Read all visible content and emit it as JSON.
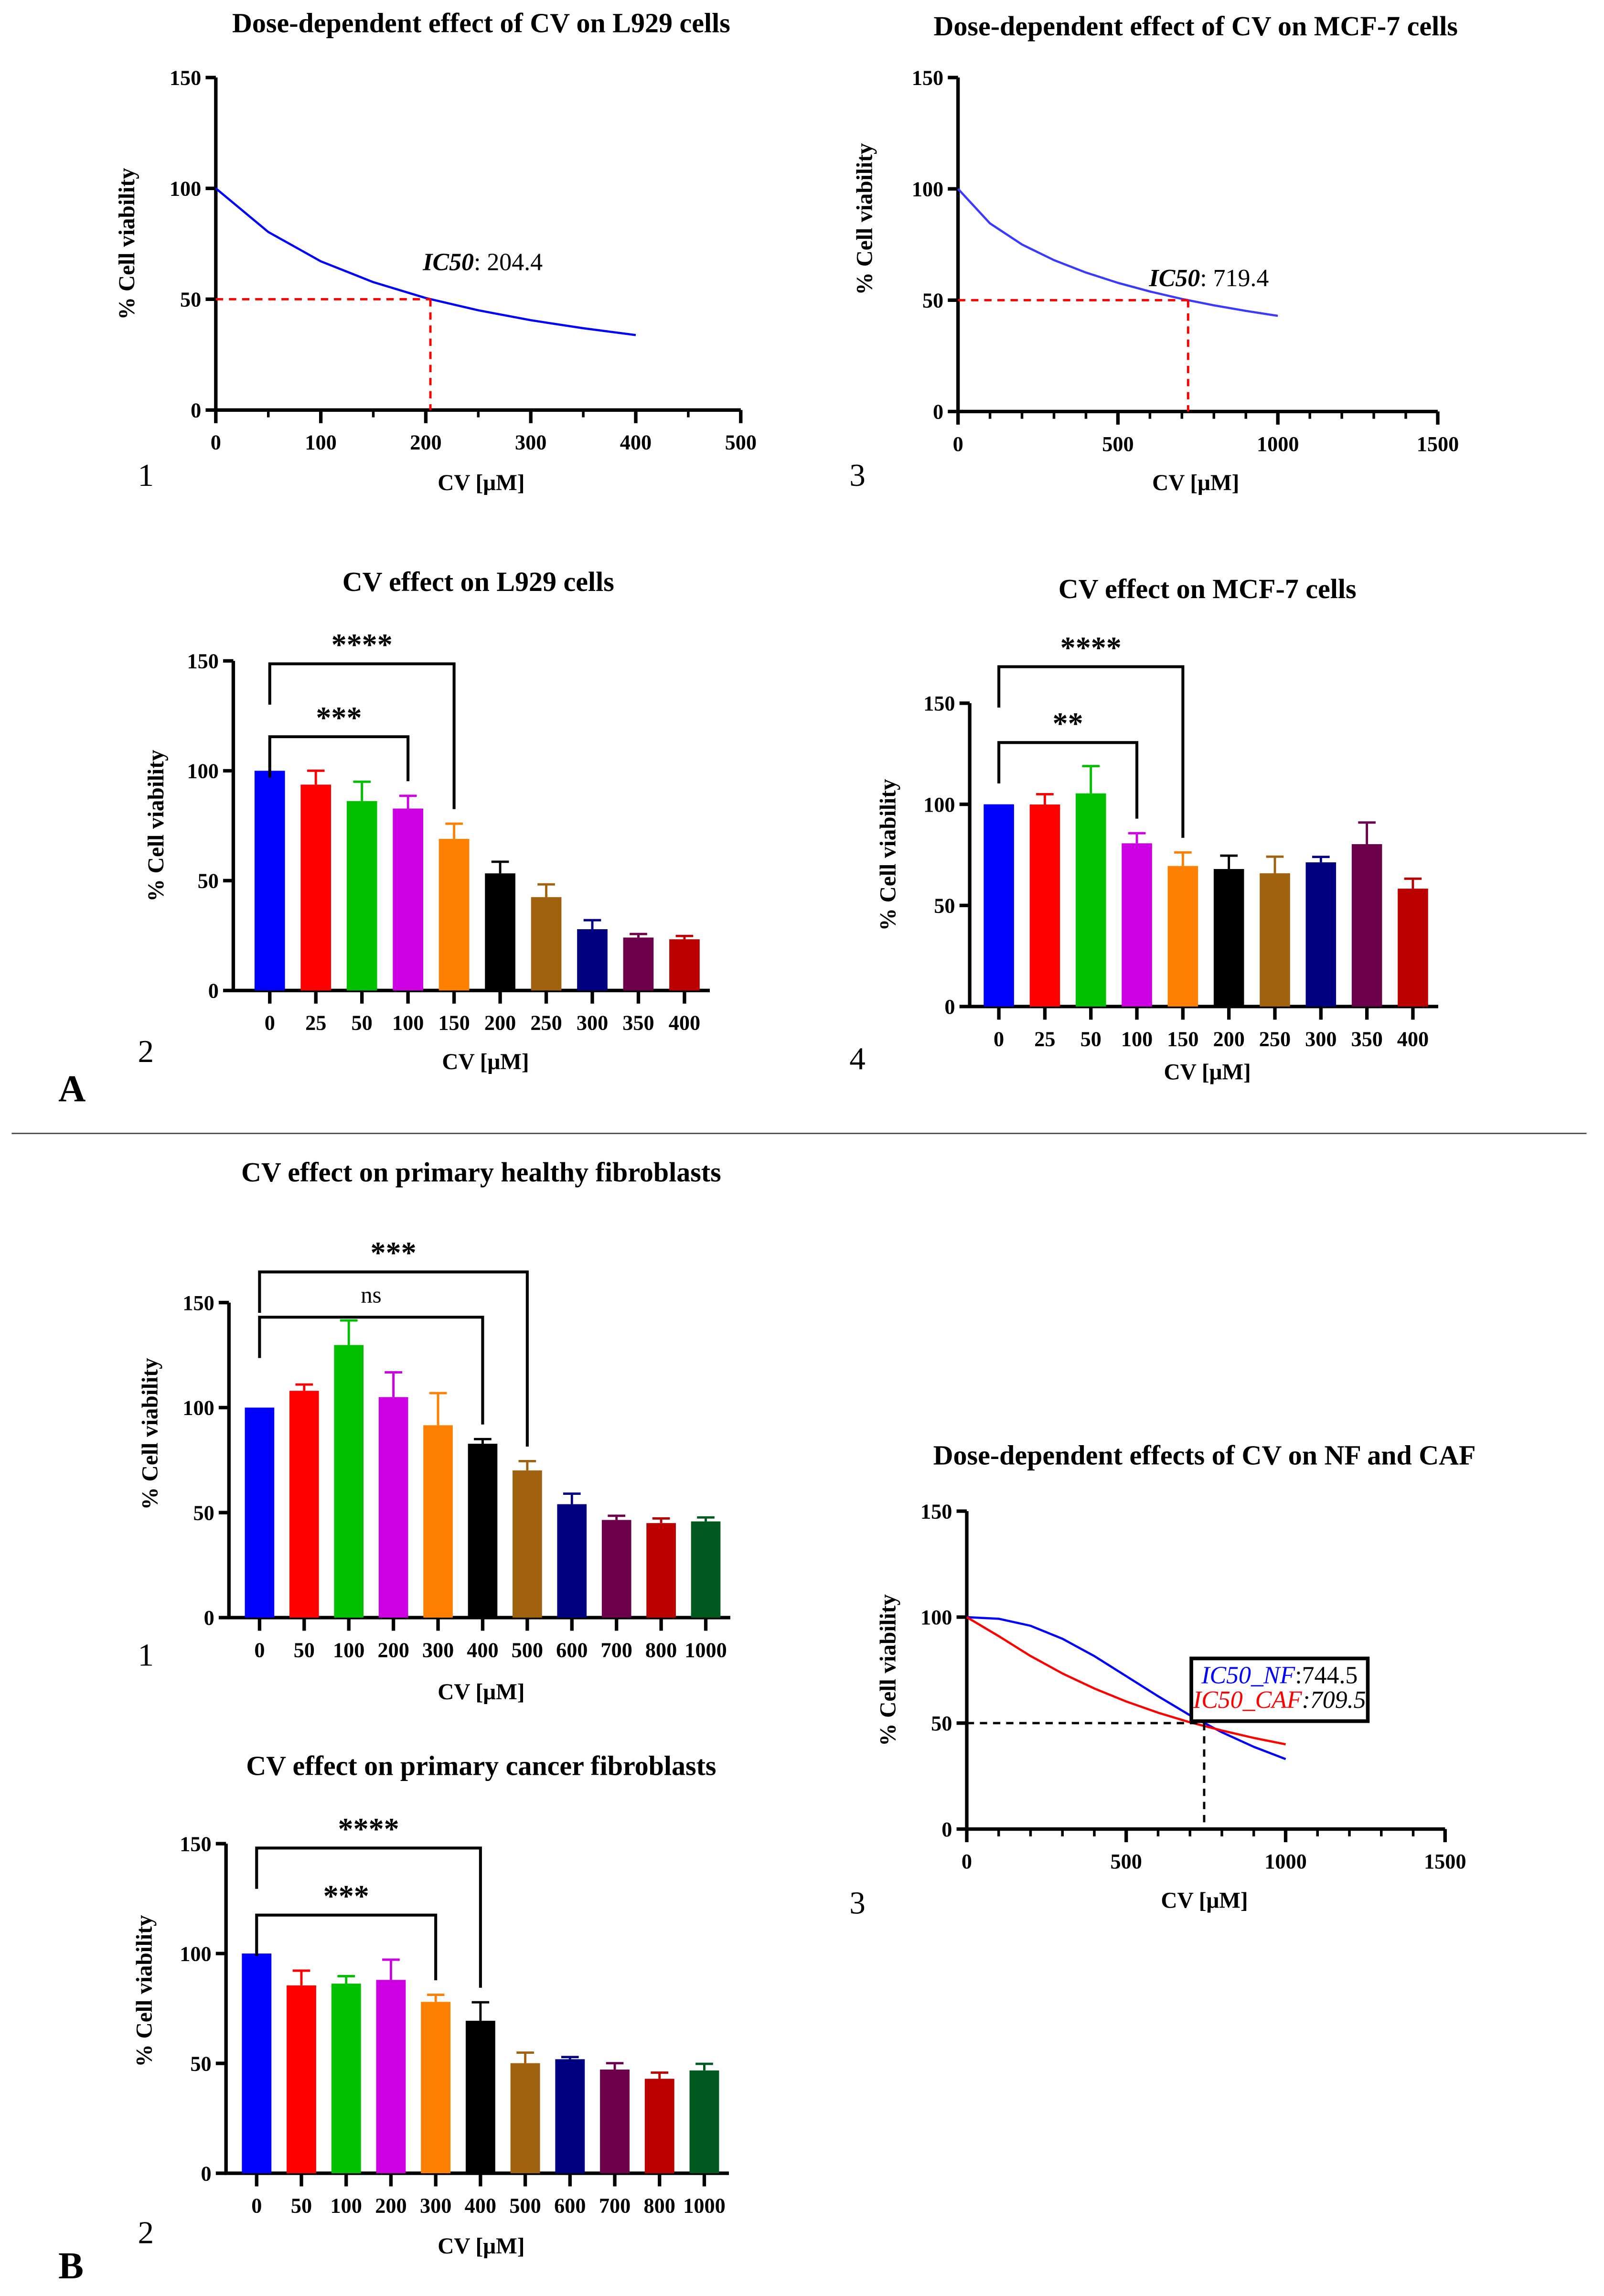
{
  "panel_labels": {
    "A": "A",
    "B": "B"
  },
  "chart_data": [
    {
      "panel": "A",
      "number": "1",
      "type": "line",
      "title": "Dose-dependent effect of CV on L929 cells",
      "xlabel": "CV [μM]",
      "ylabel": "% Cell viability",
      "xlim": [
        0,
        500
      ],
      "ylim": [
        0,
        150
      ],
      "xticks": [
        "0",
        "100",
        "200",
        "300",
        "400",
        "500"
      ],
      "yticks": [
        "0",
        "50",
        "100",
        "150"
      ],
      "grid": false,
      "series": [
        {
          "color": "#0000ff",
          "points": [
            [
              0,
              100
            ],
            [
              50,
              80.3
            ],
            [
              100,
              67.1
            ],
            [
              150,
              57.7
            ],
            [
              200,
              50.5
            ],
            [
              250,
              45.0
            ],
            [
              300,
              40.5
            ],
            [
              350,
              36.9
            ],
            [
              400,
              33.8
            ]
          ]
        }
      ],
      "ic50": 204.4,
      "guide_color": "#ff0000",
      "annotations": [
        {
          "label": "IC50",
          "value_text": ": 204.4"
        }
      ]
    },
    {
      "panel": "A",
      "number": "3",
      "type": "line",
      "title": "Dose-dependent effect of CV on MCF-7 cells",
      "xlabel": "CV [μM]",
      "ylabel": "% Cell viability",
      "xlim": [
        0,
        1500
      ],
      "ylim": [
        0,
        150
      ],
      "xticks": [
        "0",
        "500",
        "1000",
        "1500"
      ],
      "yticks": [
        "0",
        "50",
        "100",
        "150"
      ],
      "grid": false,
      "series": [
        {
          "color": "#3a3aff",
          "points": [
            [
              0,
              100
            ],
            [
              100,
              84.5
            ],
            [
              200,
              75.0
            ],
            [
              300,
              68.0
            ],
            [
              400,
              62.4
            ],
            [
              500,
              57.8
            ],
            [
              600,
              53.9
            ],
            [
              700,
              50.6
            ],
            [
              800,
              47.7
            ],
            [
              900,
              45.2
            ],
            [
              1000,
              43.0
            ]
          ]
        }
      ],
      "ic50": 719.4,
      "guide_color": "#ff0000",
      "annotations": [
        {
          "label": "IC50",
          "value_text": ": 719.4"
        }
      ]
    },
    {
      "panel": "A",
      "number": "2",
      "type": "bar",
      "title": "CV effect on L929 cells",
      "xlabel": "CV [μM]",
      "ylabel": "% Cell viability",
      "ylim": [
        0,
        150
      ],
      "yticks": [
        "0",
        "50",
        "100",
        "150"
      ],
      "categories": [
        "0",
        "25",
        "50",
        "100",
        "150",
        "200",
        "250",
        "300",
        "350",
        "400"
      ],
      "values": [
        100,
        93.7,
        86.2,
        82.8,
        69.0,
        53.3,
        42.5,
        27.9,
        24.1,
        23.3
      ],
      "error_top": [
        100,
        100,
        95.0,
        88.6,
        75.9,
        58.6,
        48.3,
        32.0,
        25.7,
        24.8
      ],
      "colors": [
        "#0000ff",
        "#ff0000",
        "#00c000",
        "#cc00e0",
        "#ff8000",
        "#000000",
        "#a0620f",
        "#000080",
        "#6d004b",
        "#bb0000"
      ],
      "significance": [
        {
          "from": "0",
          "to": "150",
          "label": "****"
        },
        {
          "from": "0",
          "to": "100",
          "label": "***"
        }
      ]
    },
    {
      "panel": "A",
      "number": "4",
      "type": "bar",
      "title": "CV effect on MCF-7 cells",
      "xlabel": "CV [μM]",
      "ylabel": "% Cell viability",
      "ylim": [
        0,
        150
      ],
      "yticks": [
        "0",
        "50",
        "100",
        "150"
      ],
      "categories": [
        "0",
        "25",
        "50",
        "100",
        "150",
        "200",
        "250",
        "300",
        "350",
        "400"
      ],
      "values": [
        100,
        99.9,
        105.4,
        80.7,
        69.5,
        68.0,
        65.9,
        71.3,
        80.3,
        58.3
      ],
      "error_top": [
        100,
        105.0,
        118.9,
        85.7,
        76.2,
        74.6,
        74.1,
        74.0,
        91.0,
        63.2
      ],
      "colors": [
        "#0000ff",
        "#ff0000",
        "#00c000",
        "#cc00e0",
        "#ff8000",
        "#000000",
        "#a0620f",
        "#000080",
        "#6d004b",
        "#bb0000"
      ],
      "significance": [
        {
          "from": "0",
          "to": "150",
          "label": "****"
        },
        {
          "from": "0",
          "to": "100",
          "label": "**"
        }
      ]
    },
    {
      "panel": "B",
      "number": "1",
      "type": "bar",
      "title": "CV effect on primary healthy fibroblasts",
      "xlabel": "CV [μM]",
      "ylabel": "% Cell viability",
      "ylim": [
        0,
        150
      ],
      "yticks": [
        "0",
        "50",
        "100",
        "150"
      ],
      "categories": [
        "0",
        "50",
        "100",
        "200",
        "300",
        "400",
        "500",
        "600",
        "700",
        "800",
        "1000"
      ],
      "values": [
        100,
        108.0,
        129.8,
        105.0,
        91.6,
        82.8,
        70.1,
        54.0,
        46.5,
        45.0,
        45.8
      ],
      "error_top": [
        100,
        111.0,
        141.5,
        116.8,
        106.9,
        85.0,
        74.5,
        59.0,
        48.5,
        47.2,
        47.7
      ],
      "colors": [
        "#0000ff",
        "#ff0000",
        "#00c000",
        "#cc00e0",
        "#ff8000",
        "#000000",
        "#a0620f",
        "#000080",
        "#6d004b",
        "#bb0000",
        "#005a20"
      ],
      "significance": [
        {
          "from": "0",
          "to": "500",
          "label": "***"
        },
        {
          "from": "0",
          "to": "400",
          "label": "ns"
        }
      ]
    },
    {
      "panel": "B",
      "number": "2",
      "type": "bar",
      "title": "CV effect on primary cancer fibroblasts",
      "xlabel": "CV [μM]",
      "ylabel": "% Cell viability",
      "ylim": [
        0,
        150
      ],
      "yticks": [
        "0",
        "50",
        "100",
        "150"
      ],
      "categories": [
        "0",
        "50",
        "100",
        "200",
        "300",
        "400",
        "500",
        "600",
        "700",
        "800",
        "1000"
      ],
      "values": [
        100,
        85.5,
        86.3,
        88.0,
        78.0,
        69.4,
        50.1,
        51.9,
        47.2,
        43.0,
        46.8
      ],
      "error_top": [
        100,
        92.2,
        89.7,
        97.2,
        81.2,
        77.8,
        54.9,
        52.9,
        50.1,
        45.8,
        49.8
      ],
      "colors": [
        "#0000ff",
        "#ff0000",
        "#00c000",
        "#cc00e0",
        "#ff8000",
        "#000000",
        "#a0620f",
        "#000080",
        "#6d004b",
        "#bb0000",
        "#005a20"
      ],
      "significance": [
        {
          "from": "0",
          "to": "400",
          "label": "****"
        },
        {
          "from": "0",
          "to": "300",
          "label": "***"
        }
      ]
    },
    {
      "panel": "B",
      "number": "3",
      "type": "line",
      "title": "Dose-dependent effects of CV on NF and CAF",
      "xlabel": "CV [μM]",
      "ylabel": "% Cell viability",
      "xlim": [
        0,
        1500
      ],
      "ylim": [
        0,
        150
      ],
      "xticks": [
        "0",
        "500",
        "1000",
        "1500"
      ],
      "yticks": [
        "0",
        "50",
        "100",
        "150"
      ],
      "grid": false,
      "series": [
        {
          "color": "#0000ff",
          "points": [
            [
              0,
              100
            ],
            [
              100,
              99.2
            ],
            [
              200,
              95.9
            ],
            [
              300,
              89.8
            ],
            [
              400,
              81.6
            ],
            [
              500,
              72.2
            ],
            [
              600,
              62.7
            ],
            [
              700,
              53.7
            ],
            [
              800,
              45.7
            ],
            [
              900,
              38.8
            ],
            [
              1000,
              33.0
            ]
          ]
        },
        {
          "color": "#ff0000",
          "points": [
            [
              0,
              100
            ],
            [
              100,
              91.0
            ],
            [
              200,
              81.7
            ],
            [
              300,
              73.4
            ],
            [
              400,
              66.3
            ],
            [
              500,
              60.2
            ],
            [
              600,
              54.9
            ],
            [
              700,
              50.4
            ],
            [
              800,
              46.5
            ],
            [
              900,
              43.0
            ],
            [
              1000,
              40.0
            ]
          ]
        }
      ],
      "ic50": 744.5,
      "guide_color": "#000000",
      "annotations": [
        {
          "label": "IC50_NF",
          "value_text": ":744.5",
          "color": "#0000ff"
        },
        {
          "label": "IC50_CAF",
          "value_text": ":709.5",
          "color": "#ff0000"
        }
      ]
    }
  ]
}
